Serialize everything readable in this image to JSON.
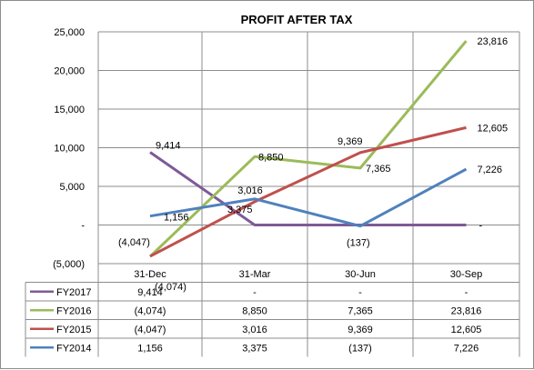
{
  "chart_data": {
    "type": "line",
    "title": "PROFIT AFTER TAX",
    "categories": [
      "31-Dec",
      "31-Mar",
      "30-Jun",
      "30-Sep"
    ],
    "ylim": [
      -5000,
      25000
    ],
    "yticks": [
      -5000,
      0,
      5000,
      10000,
      15000,
      20000,
      25000
    ],
    "ytick_labels": [
      "(5,000)",
      "-",
      "5,000",
      "10,000",
      "15,000",
      "20,000",
      "25,000"
    ],
    "grid": true,
    "legend": "data-table",
    "series": [
      {
        "name": "FY2017",
        "color": "#7e5a97",
        "values": [
          9414,
          0,
          0,
          0
        ],
        "labels": [
          "9,414",
          "-",
          "-",
          "-"
        ]
      },
      {
        "name": "FY2016",
        "color": "#9bbb59",
        "values": [
          -4074,
          8850,
          7365,
          23816
        ],
        "labels": [
          "(4,074)",
          "8,850",
          "7,365",
          "23,816"
        ]
      },
      {
        "name": "FY2015",
        "color": "#c0504d",
        "values": [
          -4047,
          3016,
          9369,
          12605
        ],
        "labels": [
          "(4,047)",
          "3,016",
          "9,369",
          "12,605"
        ]
      },
      {
        "name": "FY2014",
        "color": "#4f81bd",
        "values": [
          1156,
          3375,
          -137,
          7226
        ],
        "labels": [
          "1,156",
          "3,375",
          "(137)",
          "7,226"
        ]
      }
    ]
  }
}
